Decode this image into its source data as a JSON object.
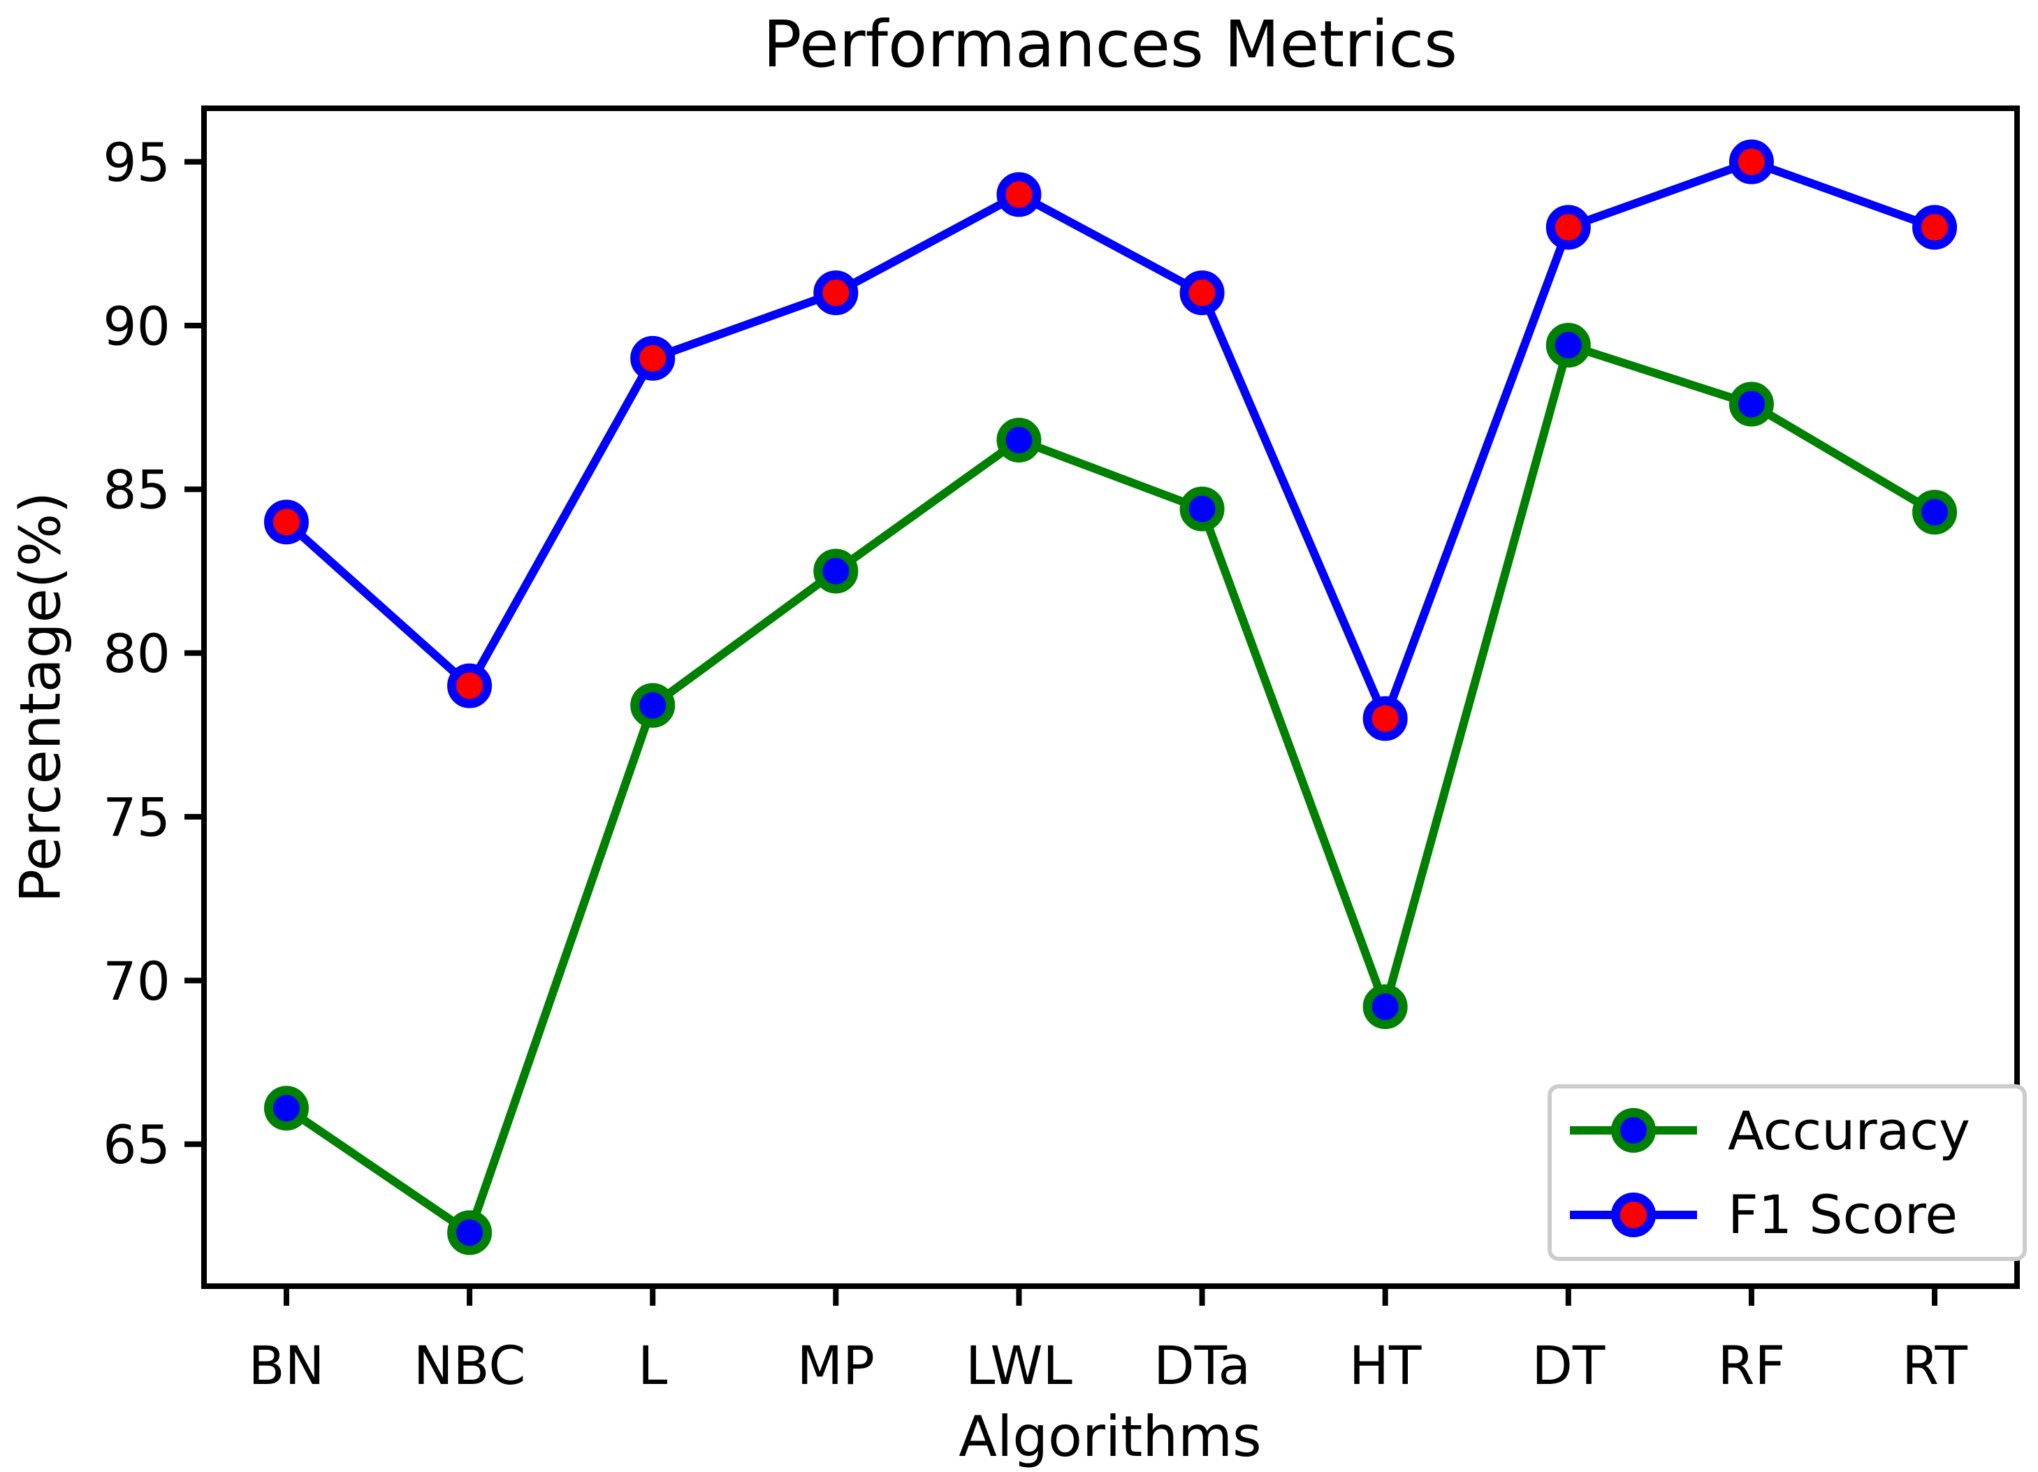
{
  "figure": {
    "background": "#ffffff",
    "text_color": "#000000",
    "axis_color": "#000000"
  },
  "chart_data": {
    "type": "line",
    "title": "Performances Metrics",
    "xlabel": "Algorithms",
    "ylabel": "Percentage(%)",
    "categories": [
      "BN",
      "NBC",
      "L",
      "MP",
      "LWL",
      "DTa",
      "HT",
      "DT",
      "RF",
      "RT"
    ],
    "series": [
      {
        "name": "Accuracy",
        "values": [
          66.1,
          62.3,
          78.4,
          82.5,
          86.5,
          84.4,
          69.2,
          89.4,
          87.6,
          84.3
        ],
        "line_color": "#008000",
        "marker_fill": "#0000ff",
        "marker_edge": "#008000"
      },
      {
        "name": "F1 Score",
        "values": [
          84,
          79,
          89,
          91,
          94,
          91,
          78,
          93,
          95,
          93
        ],
        "line_color": "#0000ff",
        "marker_fill": "#ff0000",
        "marker_edge": "#0000ff"
      }
    ],
    "yticks": [
      65,
      70,
      75,
      80,
      85,
      90,
      95
    ],
    "ylim": [
      60.665,
      96.635
    ],
    "x_margin": 0.05,
    "grid": false,
    "legend": {
      "position": "lower right",
      "labels": [
        "Accuracy",
        "F1 Score"
      ],
      "border_color": "#cccccc"
    }
  }
}
